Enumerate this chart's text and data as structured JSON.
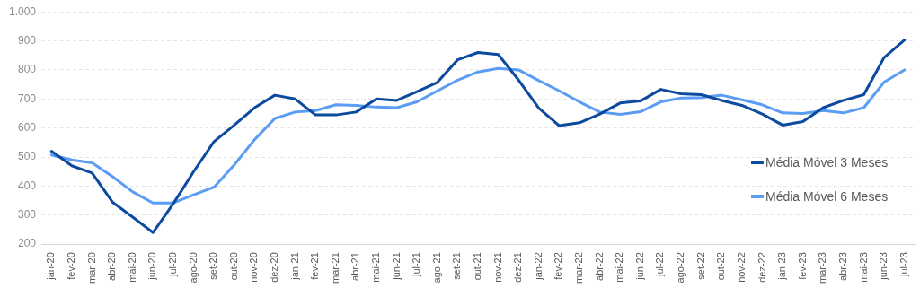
{
  "chart_data": {
    "type": "line",
    "categories": [
      "jan-20",
      "fev-20",
      "mar-20",
      "abr-20",
      "mai-20",
      "jun-20",
      "jul-20",
      "ago-20",
      "set-20",
      "out-20",
      "nov-20",
      "dez-20",
      "jan-21",
      "fev-21",
      "mar-21",
      "abr-21",
      "mai-21",
      "jun-21",
      "jul-21",
      "ago-21",
      "set-21",
      "out-21",
      "nov-21",
      "dez-21",
      "jan-22",
      "fev-22",
      "mar-22",
      "abr-22",
      "mai-22",
      "jun-22",
      "jul-22",
      "ago-22",
      "set-22",
      "out-22",
      "nov-22",
      "dez-22",
      "jan-23",
      "fev-23",
      "mar-23",
      "abr-23",
      "mai-23",
      "jun-23",
      "jul-23"
    ],
    "series": [
      {
        "name": "Média Móvel 3 Meses",
        "color": "#0b4a9e",
        "values": [
          520,
          470,
          445,
          345,
          293,
          240,
          340,
          450,
          553,
          610,
          670,
          713,
          700,
          645,
          645,
          655,
          700,
          695,
          725,
          757,
          835,
          860,
          853,
          765,
          668,
          608,
          618,
          648,
          686,
          693,
          733,
          718,
          715,
          695,
          678,
          648,
          610,
          622,
          670,
          695,
          715,
          843,
          903
        ]
      },
      {
        "name": "Média Móvel 6 Meses",
        "color": "#5b9cf5",
        "values": [
          507,
          490,
          480,
          433,
          380,
          342,
          342,
          370,
          396,
          473,
          560,
          633,
          655,
          660,
          680,
          678,
          672,
          670,
          690,
          728,
          765,
          793,
          805,
          800,
          763,
          728,
          690,
          655,
          647,
          656,
          690,
          703,
          705,
          713,
          697,
          680,
          652,
          650,
          660,
          652,
          670,
          758,
          800
        ]
      }
    ],
    "ylim": [
      200,
      1000
    ],
    "yticks": [
      200,
      300,
      400,
      500,
      600,
      700,
      800,
      900,
      {
        "value": 1000,
        "label": "1.000"
      }
    ],
    "grid": "y",
    "legend": "right",
    "marker": "none",
    "line_style": "solid"
  }
}
